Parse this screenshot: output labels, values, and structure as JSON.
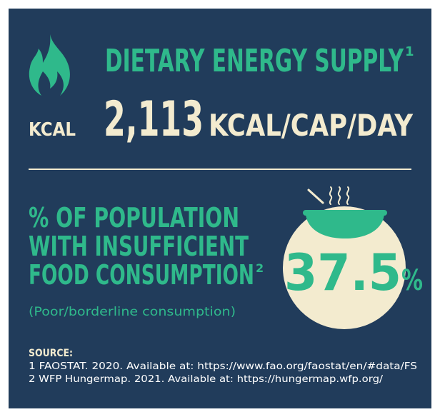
{
  "icon_label": "KCAL",
  "energy": {
    "title": "DIETARY ENERGY SUPPLY",
    "note": "1",
    "value": "2,113",
    "unit": "KCAL/CAP/DAY"
  },
  "population": {
    "title_lines": [
      "% OF POPULATION",
      "WITH INSUFFICIENT",
      "FOOD CONSUMPTION"
    ],
    "note": "2",
    "subtitle": "(Poor/borderline consumption)",
    "value": "37.5",
    "unit": "%"
  },
  "source": {
    "heading": "SOURCE:",
    "items": [
      "1 FAOSTAT. 2020. Available at: https://www.fao.org/faostat/en/#data/FS",
      "2 WFP Hungermap. 2021. Available at: https://hungermap.wfp.org/"
    ]
  }
}
